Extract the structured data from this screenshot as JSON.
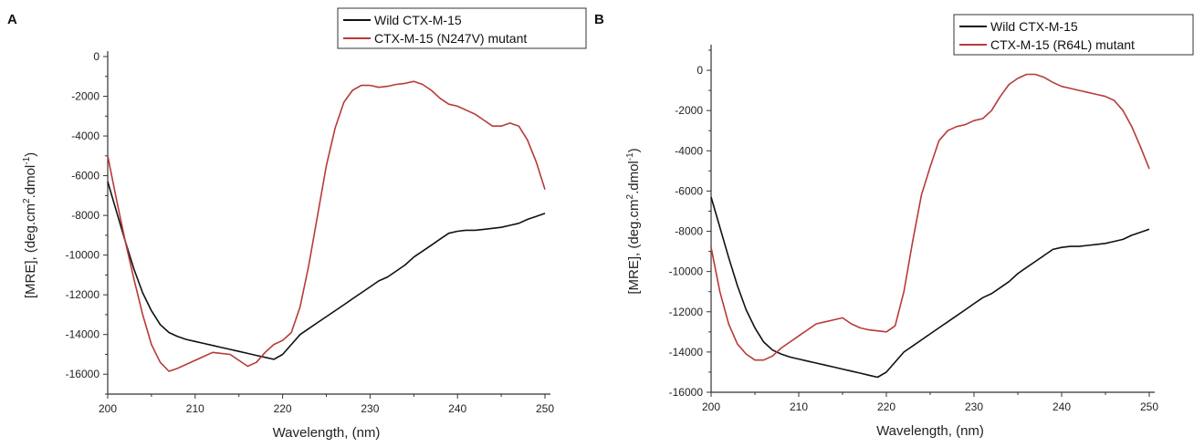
{
  "chart_data": [
    {
      "type": "line",
      "panel_label": "A",
      "xlabel": "Wavelength, (nm)",
      "ylabel_main": "[MRE], (deg.cm",
      "ylabel_sup1": "2",
      "ylabel_mid": ".dmol",
      "ylabel_sup2": "-1",
      "ylabel_end": ")",
      "xlim": [
        200,
        250
      ],
      "ylim": [
        -17000,
        0
      ],
      "x_ticks": [
        "200",
        "210",
        "220",
        "230",
        "240",
        "250"
      ],
      "y_ticks": [
        "0",
        "-2000",
        "-4000",
        "-6000",
        "-8000",
        "-10000",
        "-12000",
        "-14000",
        "-16000"
      ],
      "legend_position": "top-right",
      "series": [
        {
          "name": "Wild CTX-M-15",
          "color": "#111111",
          "x": [
            200,
            201,
            202,
            203,
            204,
            205,
            206,
            207,
            208,
            209,
            210,
            211,
            212,
            213,
            214,
            215,
            216,
            217,
            218,
            219,
            220,
            221,
            222,
            223,
            224,
            225,
            226,
            227,
            228,
            229,
            230,
            231,
            232,
            233,
            234,
            235,
            236,
            237,
            238,
            239,
            240,
            241,
            242,
            243,
            244,
            245,
            246,
            247,
            248,
            249,
            250
          ],
          "y": [
            -6300,
            -7800,
            -9300,
            -10700,
            -11900,
            -12800,
            -13500,
            -13900,
            -14100,
            -14250,
            -14350,
            -14450,
            -14550,
            -14650,
            -14750,
            -14850,
            -14950,
            -15050,
            -15150,
            -15250,
            -15000,
            -14500,
            -14000,
            -13700,
            -13400,
            -13100,
            -12800,
            -12500,
            -12200,
            -11900,
            -11600,
            -11300,
            -11100,
            -10800,
            -10500,
            -10100,
            -9800,
            -9500,
            -9200,
            -8900,
            -8800,
            -8750,
            -8750,
            -8700,
            -8650,
            -8600,
            -8500,
            -8400,
            -8200,
            -8050,
            -7900
          ]
        },
        {
          "name": "CTX-M-15 (N247V) mutant",
          "color": "#b73a3a",
          "x": [
            200,
            201,
            202,
            203,
            204,
            205,
            206,
            207,
            208,
            209,
            210,
            211,
            212,
            213,
            214,
            215,
            216,
            217,
            218,
            219,
            220,
            221,
            222,
            223,
            224,
            225,
            226,
            227,
            228,
            229,
            230,
            231,
            232,
            233,
            234,
            235,
            236,
            237,
            238,
            239,
            240,
            241,
            242,
            243,
            244,
            245,
            246,
            247,
            248,
            249,
            250
          ],
          "y": [
            -5000,
            -7200,
            -9300,
            -11200,
            -13000,
            -14500,
            -15400,
            -15850,
            -15700,
            -15500,
            -15300,
            -15100,
            -14900,
            -14950,
            -15000,
            -15300,
            -15600,
            -15400,
            -14900,
            -14500,
            -14300,
            -13900,
            -12600,
            -10500,
            -8000,
            -5500,
            -3600,
            -2300,
            -1700,
            -1450,
            -1450,
            -1550,
            -1500,
            -1400,
            -1350,
            -1250,
            -1400,
            -1700,
            -2100,
            -2400,
            -2500,
            -2700,
            -2900,
            -3200,
            -3500,
            -3500,
            -3350,
            -3500,
            -4200,
            -5300,
            -6700
          ]
        }
      ]
    },
    {
      "type": "line",
      "panel_label": "B",
      "xlabel": "Wavelength, (nm)",
      "ylabel_main": "[MRE], (deg.cm",
      "ylabel_sup1": "2",
      "ylabel_mid": ".dmol",
      "ylabel_sup2": "-1",
      "ylabel_end": ")",
      "xlim": [
        200,
        250
      ],
      "ylim": [
        -16000,
        1000
      ],
      "x_ticks": [
        "200",
        "210",
        "220",
        "230",
        "240",
        "250"
      ],
      "y_ticks": [
        "0",
        "-2000",
        "-4000",
        "-6000",
        "-8000",
        "-10000",
        "-12000",
        "-14000",
        "-16000"
      ],
      "legend_position": "top-right",
      "series": [
        {
          "name": "Wild CTX-M-15",
          "color": "#111111",
          "x": [
            200,
            201,
            202,
            203,
            204,
            205,
            206,
            207,
            208,
            209,
            210,
            211,
            212,
            213,
            214,
            215,
            216,
            217,
            218,
            219,
            220,
            221,
            222,
            223,
            224,
            225,
            226,
            227,
            228,
            229,
            230,
            231,
            232,
            233,
            234,
            235,
            236,
            237,
            238,
            239,
            240,
            241,
            242,
            243,
            244,
            245,
            246,
            247,
            248,
            249,
            250
          ],
          "y": [
            -6300,
            -7800,
            -9300,
            -10700,
            -11900,
            -12800,
            -13500,
            -13900,
            -14100,
            -14250,
            -14350,
            -14450,
            -14550,
            -14650,
            -14750,
            -14850,
            -14950,
            -15050,
            -15150,
            -15250,
            -15000,
            -14500,
            -14000,
            -13700,
            -13400,
            -13100,
            -12800,
            -12500,
            -12200,
            -11900,
            -11600,
            -11300,
            -11100,
            -10800,
            -10500,
            -10100,
            -9800,
            -9500,
            -9200,
            -8900,
            -8800,
            -8750,
            -8750,
            -8700,
            -8650,
            -8600,
            -8500,
            -8400,
            -8200,
            -8050,
            -7900
          ]
        },
        {
          "name": "CTX-M-15 (R64L) mutant",
          "color": "#b73a3a",
          "x": [
            200,
            201,
            202,
            203,
            204,
            205,
            206,
            207,
            208,
            209,
            210,
            211,
            212,
            213,
            214,
            215,
            216,
            217,
            218,
            219,
            220,
            221,
            222,
            223,
            224,
            225,
            226,
            227,
            228,
            229,
            230,
            231,
            232,
            233,
            234,
            235,
            236,
            237,
            238,
            239,
            240,
            241,
            242,
            243,
            244,
            245,
            246,
            247,
            248,
            249,
            250
          ],
          "y": [
            -8800,
            -11000,
            -12600,
            -13600,
            -14100,
            -14400,
            -14400,
            -14200,
            -13800,
            -13500,
            -13200,
            -12900,
            -12600,
            -12500,
            -12400,
            -12300,
            -12600,
            -12800,
            -12900,
            -12950,
            -13000,
            -12700,
            -11000,
            -8500,
            -6200,
            -4800,
            -3500,
            -3000,
            -2800,
            -2700,
            -2500,
            -2400,
            -2000,
            -1300,
            -700,
            -400,
            -200,
            -200,
            -350,
            -600,
            -800,
            -900,
            -1000,
            -1100,
            -1200,
            -1300,
            -1500,
            -2000,
            -2800,
            -3800,
            -4900
          ]
        }
      ]
    }
  ]
}
